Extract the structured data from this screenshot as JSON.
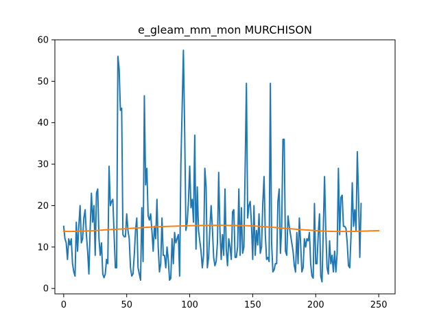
{
  "chart_data": {
    "type": "line",
    "title": "e_gleam_mm_mon MURCHISON",
    "xlabel": "",
    "ylabel": "",
    "xlim": [
      -7,
      263
    ],
    "ylim": [
      -1.3,
      60
    ],
    "x_ticks": [
      0,
      50,
      100,
      150,
      200,
      250
    ],
    "y_ticks": [
      0,
      10,
      20,
      30,
      40,
      50,
      60
    ],
    "x_tick_labels": [
      "0",
      "50",
      "100",
      "150",
      "200",
      "250"
    ],
    "y_tick_labels": [
      "0",
      "10",
      "20",
      "30",
      "40",
      "50",
      "60"
    ],
    "grid": false,
    "legend": "none",
    "series": [
      {
        "color": "#1f77b4",
        "values": [
          15.0,
          12.0,
          11.0,
          7.0,
          12.0,
          10.5,
          12.0,
          6.0,
          4.0,
          3.0,
          16.0,
          9.0,
          15.0,
          20.0,
          11.0,
          12.0,
          17.0,
          19.0,
          13.0,
          9.0,
          3.5,
          14.5,
          23.0,
          16.0,
          20.0,
          8.0,
          23.0,
          24.0,
          12.0,
          8.0,
          11.0,
          3.5,
          2.6,
          3.5,
          7.0,
          6.0,
          29.5,
          20.0,
          21.0,
          21.5,
          13.0,
          5.0,
          5.0,
          56.0,
          53.0,
          43.0,
          43.5,
          13.0,
          12.5,
          12.5,
          18.0,
          14.0,
          12.0,
          5.0,
          3.0,
          3.5,
          8.0,
          14.0,
          17.0,
          5.0,
          3.5,
          2.0,
          19.5,
          6.5,
          46.5,
          25.0,
          29.0,
          17.5,
          16.5,
          18.0,
          14.0,
          9.0,
          15.0,
          12.0,
          21.5,
          10.0,
          4.0,
          6.0,
          17.0,
          8.0,
          8.0,
          5.0,
          10.0,
          7.0,
          2.0,
          2.5,
          12.0,
          6.0,
          13.5,
          11.0,
          12.0,
          13.0,
          3.0,
          30.0,
          43.5,
          57.5,
          38.0,
          14.0,
          16.0,
          21.0,
          29.5,
          19.5,
          21.5,
          16.0,
          37.0,
          9.5,
          24.5,
          14.0,
          11.5,
          9.0,
          5.0,
          8.0,
          29.0,
          24.5,
          5.0,
          7.5,
          14.5,
          20.0,
          14.5,
          7.5,
          5.5,
          6.5,
          11.0,
          28.0,
          14.0,
          7.0,
          13.0,
          8.0,
          24.0,
          9.5,
          5.5,
          12.0,
          10.0,
          7.0,
          18.5,
          19.0,
          7.5,
          7.5,
          10.0,
          24.0,
          8.0,
          19.5,
          8.5,
          10.0,
          29.0,
          49.5,
          17.0,
          20.0,
          21.0,
          15.5,
          7.0,
          20.0,
          8.0,
          14.0,
          10.5,
          18.0,
          8.5,
          10.0,
          20.5,
          27.0,
          13.0,
          7.0,
          7.5,
          6.5,
          49.5,
          11.0,
          4.0,
          4.5,
          6.0,
          6.0,
          21.0,
          24.0,
          8.5,
          15.0,
          36.0,
          36.0,
          9.0,
          8.0,
          17.5,
          15.0,
          13.0,
          11.0,
          9.0,
          5.5,
          4.0,
          13.5,
          6.0,
          17.0,
          11.0,
          4.0,
          5.0,
          12.0,
          10.0,
          12.0,
          11.5,
          13.5,
          6.0,
          3.0,
          2.5,
          20.5,
          6.0,
          6.0,
          13.0,
          18.0,
          3.0,
          1.6,
          14.0,
          27.0,
          14.0,
          5.0,
          3.5,
          11.5,
          6.0,
          8.0,
          4.0,
          9.0,
          4.0,
          8.5,
          29.0,
          13.0,
          22.0,
          22.5,
          15.0,
          15.0,
          14.5,
          11.0,
          5.5,
          5.0,
          12.5,
          25.5,
          15.0,
          19.0,
          14.0,
          33.0,
          22.0,
          7.5,
          20.5
        ]
      },
      {
        "color": "#ff7f0e",
        "values": [
          13.8,
          13.79,
          13.78,
          13.77,
          13.76,
          13.76,
          13.76,
          13.77,
          13.77,
          13.78,
          13.79,
          13.8,
          13.81,
          13.82,
          13.83,
          13.84,
          13.85,
          13.86,
          13.87,
          13.88,
          13.89,
          13.9,
          13.91,
          13.93,
          13.95,
          13.97,
          13.99,
          14.01,
          14.04,
          14.06,
          14.08,
          14.1,
          14.12,
          14.14,
          14.16,
          14.18,
          14.2,
          14.21,
          14.23,
          14.25,
          14.26,
          14.28,
          14.29,
          14.31,
          14.33,
          14.34,
          14.36,
          14.38,
          14.4,
          14.42,
          14.45,
          14.47,
          14.49,
          14.51,
          14.53,
          14.55,
          14.57,
          14.59,
          14.61,
          14.63,
          14.65,
          14.67,
          14.68,
          14.7,
          14.72,
          14.74,
          14.76,
          14.78,
          14.8,
          14.82,
          14.83,
          14.85,
          14.86,
          14.88,
          14.89,
          14.9,
          14.91,
          14.92,
          14.93,
          14.94,
          14.95,
          14.96,
          14.97,
          14.98,
          14.99,
          15.0,
          15.01,
          15.02,
          15.03,
          15.04,
          15.05,
          15.06,
          15.07,
          15.08,
          15.09,
          15.1,
          15.11,
          15.12,
          15.13,
          15.14,
          15.15,
          15.16,
          15.16,
          15.17,
          15.17,
          15.18,
          15.18,
          15.19,
          15.19,
          15.2,
          15.2,
          15.2,
          15.21,
          15.21,
          15.21,
          15.22,
          15.22,
          15.22,
          15.22,
          15.22,
          15.22,
          15.22,
          15.22,
          15.22,
          15.22,
          15.22,
          15.22,
          15.22,
          15.22,
          15.22,
          15.21,
          15.21,
          15.21,
          15.21,
          15.2,
          15.2,
          15.2,
          15.19,
          15.19,
          15.18,
          15.18,
          15.17,
          15.17,
          15.16,
          15.16,
          15.15,
          15.14,
          15.13,
          15.12,
          15.11,
          15.1,
          15.08,
          15.06,
          15.04,
          15.02,
          15.0,
          14.98,
          14.96,
          14.94,
          14.92,
          14.9,
          14.88,
          14.85,
          14.83,
          14.81,
          14.78,
          14.76,
          14.73,
          14.71,
          14.68,
          14.66,
          14.63,
          14.61,
          14.58,
          14.56,
          14.53,
          14.51,
          14.48,
          14.46,
          14.43,
          14.41,
          14.38,
          14.36,
          14.33,
          14.31,
          14.28,
          14.26,
          14.24,
          14.21,
          14.19,
          14.17,
          14.14,
          14.12,
          14.1,
          14.08,
          14.06,
          14.04,
          14.02,
          14.0,
          13.98,
          13.96,
          13.94,
          13.92,
          13.9,
          13.88,
          13.87,
          13.85,
          13.84,
          13.83,
          13.82,
          13.81,
          13.8,
          13.79,
          13.78,
          13.77,
          13.76,
          13.76,
          13.75,
          13.75,
          13.75,
          13.75,
          13.75,
          13.75,
          13.75,
          13.75,
          13.76,
          13.76,
          13.76,
          13.77,
          13.77,
          13.78,
          13.78,
          13.79,
          13.79,
          13.8,
          13.81,
          13.82,
          13.83,
          13.84,
          13.85,
          13.86,
          13.87,
          13.88,
          13.89,
          13.9,
          13.91,
          13.92,
          13.93,
          13.94,
          13.95,
          13.95
        ]
      }
    ]
  }
}
